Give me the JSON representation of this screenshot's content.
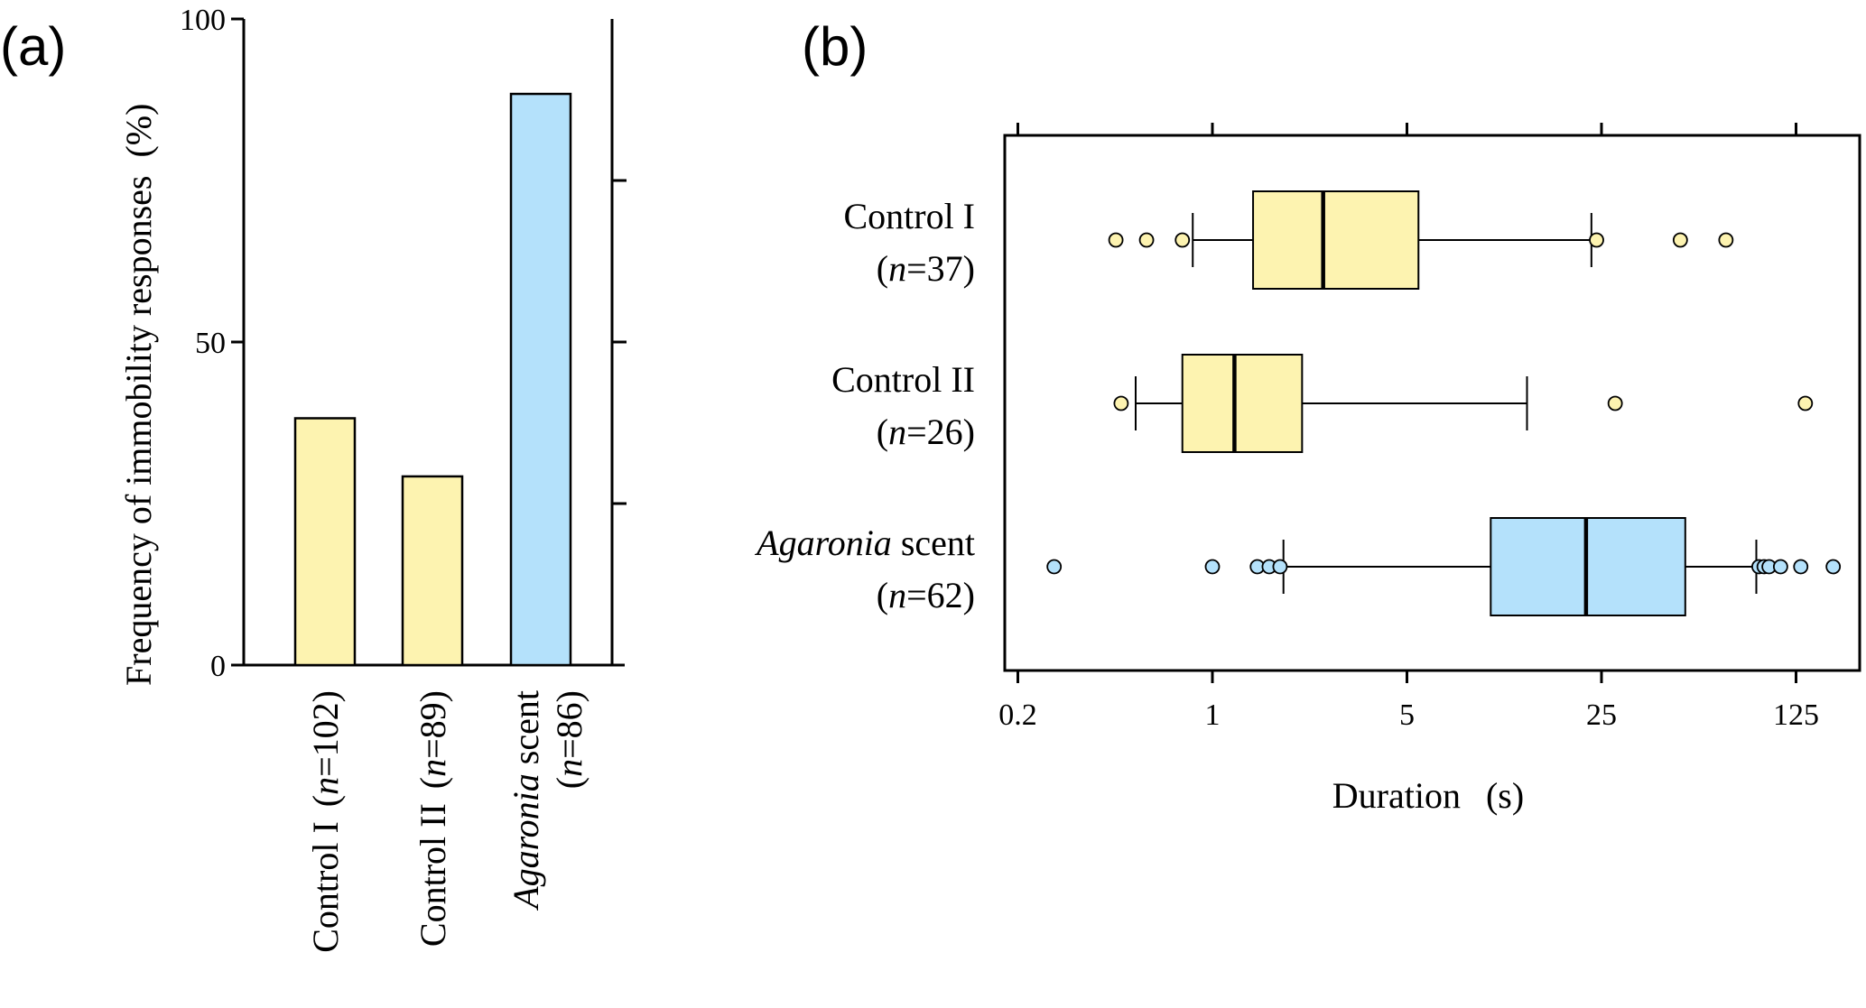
{
  "panels": {
    "a_label": "(a)",
    "b_label": "(b)"
  },
  "chart_data": [
    {
      "type": "bar",
      "panel": "(a)",
      "ylabel": "Frequency of immobility responses",
      "ylabel_unit": "(%)",
      "ylim": [
        0,
        100
      ],
      "yticks": [
        0,
        50,
        100
      ],
      "categories": [
        {
          "name": "Control I",
          "name_italic": false,
          "n_text": "(n=102)",
          "n": "102"
        },
        {
          "name": "Control II",
          "name_italic": false,
          "n_text": "(n=89)",
          "n": "89"
        },
        {
          "name": "Agaronia",
          "name_italic": true,
          "suffix": " scent",
          "n_text": "(n=86)",
          "n": "86"
        }
      ],
      "values": [
        38.2,
        29.2,
        88.4
      ],
      "colors": [
        "#fdf3b0",
        "#fdf3b0",
        "#b4e1fb"
      ]
    },
    {
      "type": "boxplot",
      "panel": "(b)",
      "orientation": "horizontal",
      "xlabel": "Duration",
      "xlabel_unit": "(s)",
      "xscale": "log5",
      "xlim": [
        0.17,
        180
      ],
      "xticks": [
        0.2,
        1,
        5,
        25,
        125
      ],
      "xtick_labels": [
        "0.2",
        "1",
        "5",
        "25",
        "125"
      ],
      "groups": [
        {
          "name": "Control I",
          "name_italic": false,
          "suffix": "",
          "n_text": "(n=37)",
          "n": "37",
          "color": "#fdf3b0",
          "whisker_low": 0.85,
          "q1": 1.4,
          "median": 2.5,
          "q3": 5.5,
          "whisker_high": 23,
          "outliers": [
            0.45,
            0.58,
            0.78,
            24,
            48,
            70
          ]
        },
        {
          "name": "Control II",
          "name_italic": false,
          "suffix": "",
          "n_text": "(n=26)",
          "n": "26",
          "color": "#fdf3b0",
          "whisker_low": 0.53,
          "q1": 0.78,
          "median": 1.2,
          "q3": 2.1,
          "whisker_high": 13.5,
          "outliers": [
            0.47,
            28,
            135
          ]
        },
        {
          "name": "Agaronia",
          "name_italic": true,
          "suffix": " scent",
          "n_text": "(n=62)",
          "n": "62",
          "color": "#b4e1fb",
          "whisker_low": 1.8,
          "q1": 10,
          "median": 22,
          "q3": 50,
          "whisker_high": 90,
          "outliers": [
            0.27,
            1.0,
            1.45,
            1.6,
            1.75,
            92,
            96,
            100,
            110,
            130,
            170
          ]
        }
      ]
    }
  ]
}
